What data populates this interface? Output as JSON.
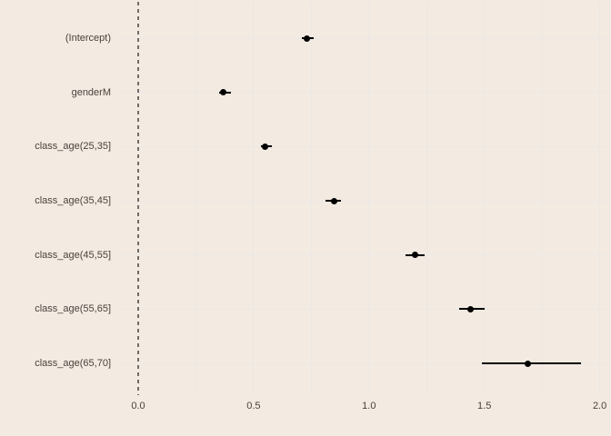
{
  "chart_data": {
    "type": "scatter",
    "variant": "coefficient-dot-whisker-plot",
    "title": "",
    "xlabel": "",
    "ylabel": "",
    "categories": [
      "(Intercept)",
      "genderM",
      "class_age(25,35]",
      "class_age(35,45]",
      "class_age(45,55]",
      "class_age(55,65]",
      "class_age(65,70]"
    ],
    "series": [
      {
        "name": "estimate",
        "values": [
          0.73,
          0.37,
          0.55,
          0.85,
          1.2,
          1.44,
          1.69
        ],
        "ci_low": [
          0.71,
          0.35,
          0.53,
          0.81,
          1.16,
          1.39,
          1.49
        ],
        "ci_high": [
          0.76,
          0.4,
          0.58,
          0.88,
          1.24,
          1.5,
          1.92
        ]
      }
    ],
    "xlim": [
      -0.09,
      2.05
    ],
    "x_ticks": [
      0.0,
      0.5,
      1.0,
      1.5,
      2.0
    ],
    "x_tick_labels": [
      "0.0",
      "0.5",
      "1.0",
      "1.5",
      "2.0"
    ],
    "x_minor_grid_step": 0.25,
    "reference_line_x": 0.0,
    "grid": true,
    "legend": false
  },
  "style": {
    "background": "#f3eae1",
    "gridline": "#ebe8e5",
    "point_color": "#000000",
    "errorbar_color": "#000000",
    "reference_line_color": "#6f6b68",
    "label_color": "#49433d",
    "tick_label_color": "#49433d"
  }
}
